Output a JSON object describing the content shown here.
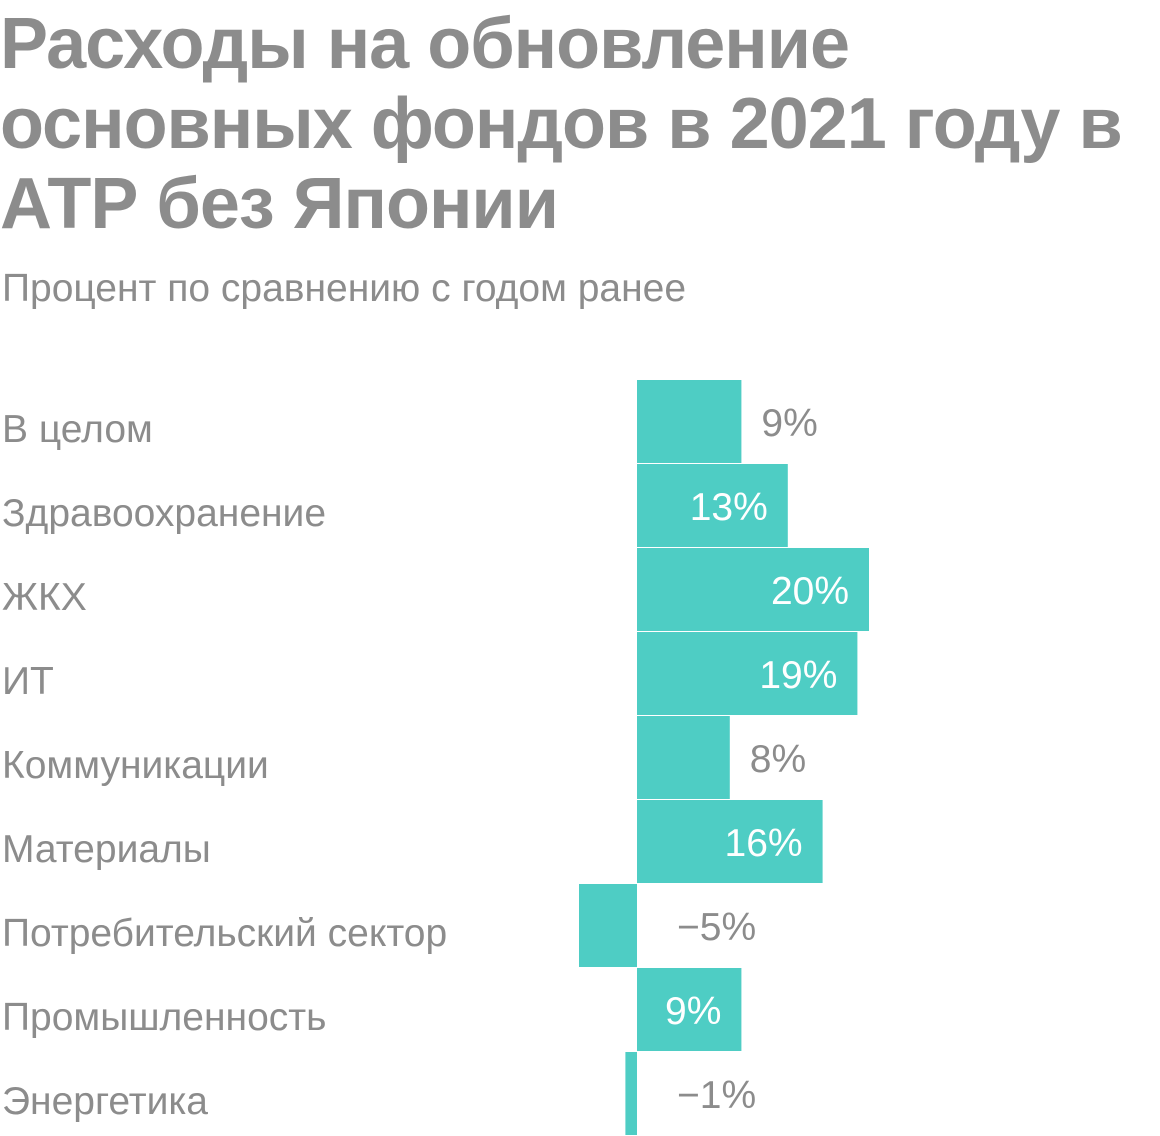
{
  "title": "Расходы на обновление основных фондов в 2021 году в АТР без Японии",
  "subtitle": "Процент по сравнению с годом ранее",
  "colors": {
    "bar": "#4ecdc4",
    "text": "#8c8c8c",
    "inside_label": "#ffffff",
    "background": "#ffffff"
  },
  "chart_data": {
    "type": "bar",
    "orientation": "horizontal",
    "title": "Расходы на обновление основных фондов в 2021 году в АТР без Японии",
    "subtitle": "Процент по сравнению с годом ранее",
    "xlabel": "",
    "ylabel": "",
    "unit": "%",
    "grid": false,
    "legend": "none",
    "categories": [
      "В целом",
      "Здравоохранение",
      "ЖКХ",
      "ИТ",
      "Коммуникации",
      "Материалы",
      "Потребительский сектор",
      "Промышленность",
      "Энергетика"
    ],
    "values": [
      9,
      13,
      20,
      19,
      8,
      16,
      -5,
      9,
      -1
    ],
    "labels": [
      "9%",
      "13%",
      "20%",
      "19%",
      "8%",
      "16%",
      "−5%",
      "9%",
      "−1%"
    ],
    "label_inside": [
      false,
      true,
      true,
      true,
      false,
      true,
      false,
      true,
      false
    ]
  }
}
